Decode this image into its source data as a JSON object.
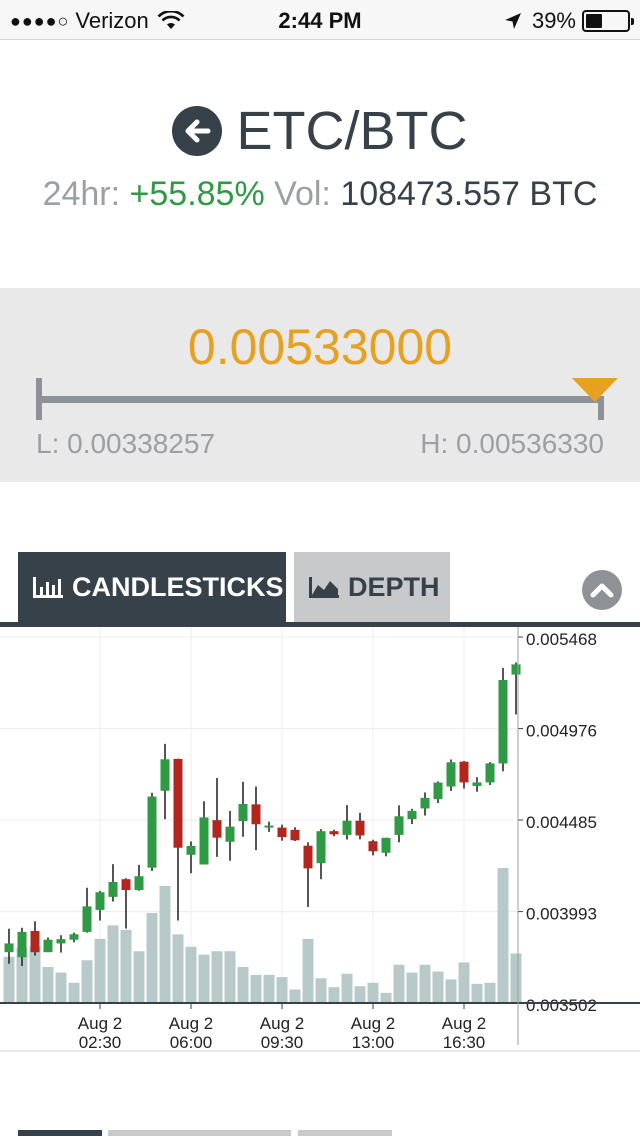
{
  "status_bar": {
    "signal": "●●●●○",
    "carrier": "Verizon",
    "time": "2:44 PM",
    "battery": "39%"
  },
  "header": {
    "pair": "ETC/BTC",
    "change_label": "24hr:",
    "change_value": "+55.85%",
    "vol_label": "Vol:",
    "vol_value": "108473.557 BTC"
  },
  "price_panel": {
    "price": "0.00533000",
    "low": "L: 0.00338257",
    "high": "H: 0.00536330",
    "position_fraction": 0.984
  },
  "tabs": {
    "candlesticks": "CANDLESTICKS",
    "depth": "DEPTH",
    "active": "candlesticks"
  },
  "colors": {
    "up": "#2f9a44",
    "down": "#b3261e",
    "volume": "#b8c9c9",
    "accent": "#e8a020",
    "dark": "#37414a"
  },
  "chart_data": {
    "type": "candlestick",
    "y_ticks": [
      "0.005468",
      "0.004976",
      "0.004485",
      "0.003993",
      "0.003502"
    ],
    "ylim": [
      0.003502,
      0.005468
    ],
    "x_ticks": [
      {
        "date": "Aug 2",
        "time": "02:30",
        "index": 7
      },
      {
        "date": "Aug 2",
        "time": "06:00",
        "index": 14
      },
      {
        "date": "Aug 2",
        "time": "09:30",
        "index": 21
      },
      {
        "date": "Aug 2",
        "time": "13:00",
        "index": 28
      },
      {
        "date": "Aug 2",
        "time": "16:30",
        "index": 35
      }
    ],
    "volume_max": 1.0,
    "candles": [
      {
        "o": 0.003775,
        "c": 0.003822,
        "h": 0.003901,
        "l": 0.003713,
        "v": 0.205
      },
      {
        "o": 0.003748,
        "c": 0.003884,
        "h": 0.003906,
        "l": 0.003701,
        "v": 0.245
      },
      {
        "o": 0.003889,
        "c": 0.003775,
        "h": 0.003941,
        "l": 0.003757,
        "v": 0.25
      },
      {
        "o": 0.003775,
        "c": 0.003842,
        "h": 0.003854,
        "l": 0.003775,
        "v": 0.16
      },
      {
        "o": 0.003822,
        "c": 0.003845,
        "h": 0.003866,
        "l": 0.003773,
        "v": 0.135
      },
      {
        "o": 0.003842,
        "c": 0.003871,
        "h": 0.00388,
        "l": 0.003828,
        "v": 0.09
      },
      {
        "o": 0.003884,
        "c": 0.004021,
        "h": 0.004121,
        "l": 0.00388,
        "v": 0.19
      },
      {
        "o": 0.004002,
        "c": 0.004097,
        "h": 0.004104,
        "l": 0.003945,
        "v": 0.285
      },
      {
        "o": 0.004072,
        "c": 0.004152,
        "h": 0.004248,
        "l": 0.004047,
        "v": 0.345
      },
      {
        "o": 0.004167,
        "c": 0.004109,
        "h": 0.004172,
        "l": 0.003902,
        "v": 0.325
      },
      {
        "o": 0.004109,
        "c": 0.004183,
        "h": 0.004244,
        "l": 0.004105,
        "v": 0.23
      },
      {
        "o": 0.004229,
        "c": 0.004611,
        "h": 0.004631,
        "l": 0.004211,
        "v": 0.4
      },
      {
        "o": 0.004642,
        "c": 0.004811,
        "h": 0.004894,
        "l": 0.004489,
        "v": 0.52
      },
      {
        "o": 0.004813,
        "c": 0.004336,
        "h": 0.004815,
        "l": 0.003945,
        "v": 0.305
      },
      {
        "o": 0.004298,
        "c": 0.004346,
        "h": 0.00437,
        "l": 0.004199,
        "v": 0.25
      },
      {
        "o": 0.004246,
        "c": 0.004499,
        "h": 0.004586,
        "l": 0.004246,
        "v": 0.215
      },
      {
        "o": 0.004484,
        "c": 0.00439,
        "h": 0.004711,
        "l": 0.004287,
        "v": 0.23
      },
      {
        "o": 0.004368,
        "c": 0.004449,
        "h": 0.004534,
        "l": 0.004266,
        "v": 0.23
      },
      {
        "o": 0.004479,
        "c": 0.004571,
        "h": 0.00469,
        "l": 0.004395,
        "v": 0.16
      },
      {
        "o": 0.004569,
        "c": 0.004462,
        "h": 0.004665,
        "l": 0.004323,
        "v": 0.125
      },
      {
        "o": 0.004452,
        "c": 0.004455,
        "h": 0.004476,
        "l": 0.004421,
        "v": 0.125
      },
      {
        "o": 0.004444,
        "c": 0.004393,
        "h": 0.00446,
        "l": 0.004374,
        "v": 0.115
      },
      {
        "o": 0.004432,
        "c": 0.004376,
        "h": 0.004446,
        "l": 0.004372,
        "v": 0.06
      },
      {
        "o": 0.004347,
        "c": 0.004225,
        "h": 0.004365,
        "l": 0.004018,
        "v": 0.285
      },
      {
        "o": 0.004253,
        "c": 0.004425,
        "h": 0.004436,
        "l": 0.004167,
        "v": 0.11
      },
      {
        "o": 0.004425,
        "c": 0.004408,
        "h": 0.004433,
        "l": 0.004398,
        "v": 0.07
      },
      {
        "o": 0.004405,
        "c": 0.004481,
        "h": 0.004565,
        "l": 0.00438,
        "v": 0.13
      },
      {
        "o": 0.004481,
        "c": 0.004402,
        "h": 0.004524,
        "l": 0.004381,
        "v": 0.075
      },
      {
        "o": 0.004371,
        "c": 0.004317,
        "h": 0.004379,
        "l": 0.004295,
        "v": 0.09
      },
      {
        "o": 0.004309,
        "c": 0.004389,
        "h": 0.00439,
        "l": 0.00429,
        "v": 0.045
      },
      {
        "o": 0.004405,
        "c": 0.004505,
        "h": 0.004564,
        "l": 0.004365,
        "v": 0.17
      },
      {
        "o": 0.00449,
        "c": 0.004534,
        "h": 0.004545,
        "l": 0.004463,
        "v": 0.135
      },
      {
        "o": 0.004547,
        "c": 0.004604,
        "h": 0.004633,
        "l": 0.004509,
        "v": 0.17
      },
      {
        "o": 0.004597,
        "c": 0.004686,
        "h": 0.004692,
        "l": 0.004576,
        "v": 0.14
      },
      {
        "o": 0.004665,
        "c": 0.004795,
        "h": 0.00481,
        "l": 0.004641,
        "v": 0.105
      },
      {
        "o": 0.004798,
        "c": 0.004687,
        "h": 0.004802,
        "l": 0.004654,
        "v": 0.18
      },
      {
        "o": 0.004668,
        "c": 0.004687,
        "h": 0.004715,
        "l": 0.004637,
        "v": 0.085
      },
      {
        "o": 0.004687,
        "c": 0.004789,
        "h": 0.004796,
        "l": 0.004673,
        "v": 0.09
      },
      {
        "o": 0.004789,
        "c": 0.005237,
        "h": 0.005302,
        "l": 0.004747,
        "v": 0.6
      },
      {
        "o": 0.005266,
        "c": 0.005321,
        "h": 0.005331,
        "l": 0.005052,
        "v": 0.22
      }
    ]
  }
}
